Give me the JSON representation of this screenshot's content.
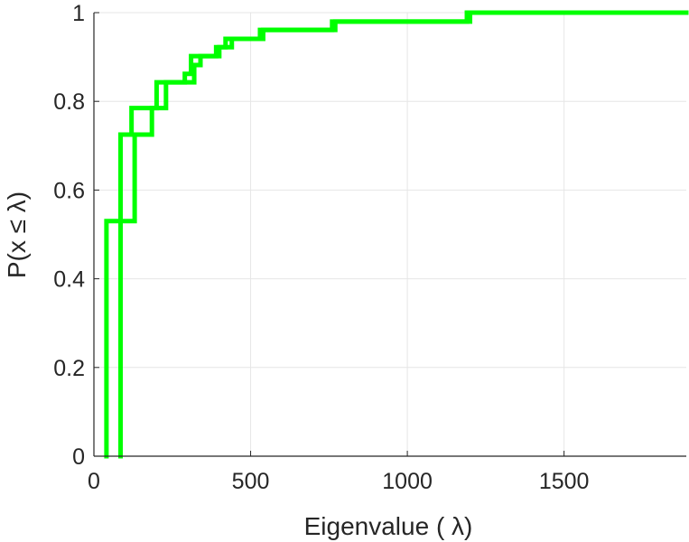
{
  "chart_data": {
    "type": "line",
    "title": "",
    "xlabel": "Eigenvalue ( λ)",
    "ylabel": "P(x ≤ λ)",
    "xlim": [
      0,
      1890
    ],
    "ylim": [
      0,
      1
    ],
    "grid": true,
    "xticks": [
      0,
      500,
      1000,
      1500
    ],
    "xtick_labels": [
      "0",
      "500",
      "1000",
      "1500"
    ],
    "yticks": [
      0,
      0.2,
      0.4,
      0.6,
      0.8,
      1
    ],
    "ytick_labels": [
      "0",
      "0.2",
      "0.4",
      "0.6",
      "0.8",
      "1"
    ],
    "line_color": "#00ff00",
    "series": [
      {
        "style": "stairs",
        "x": [
          40,
          85,
          120,
          150,
          200,
          240,
          290,
          310,
          350,
          390,
          420,
          470,
          540,
          580,
          770,
          800,
          1200,
          1240,
          1890
        ],
        "y": [
          0.53,
          0.725,
          0.785,
          0.785,
          0.843,
          0.843,
          0.862,
          0.902,
          0.902,
          0.922,
          0.941,
          0.941,
          0.961,
          0.961,
          0.98,
          0.98,
          1,
          1,
          1
        ]
      },
      {
        "style": "stairs",
        "x": [
          85,
          130,
          155,
          185,
          230,
          280,
          320,
          340,
          400,
          440,
          460,
          530,
          570,
          760,
          790,
          1190,
          1230,
          1890
        ],
        "y": [
          0.53,
          0.725,
          0.725,
          0.785,
          0.843,
          0.843,
          0.882,
          0.902,
          0.922,
          0.941,
          0.941,
          0.961,
          0.961,
          0.98,
          0.98,
          1,
          1,
          1
        ]
      }
    ]
  }
}
